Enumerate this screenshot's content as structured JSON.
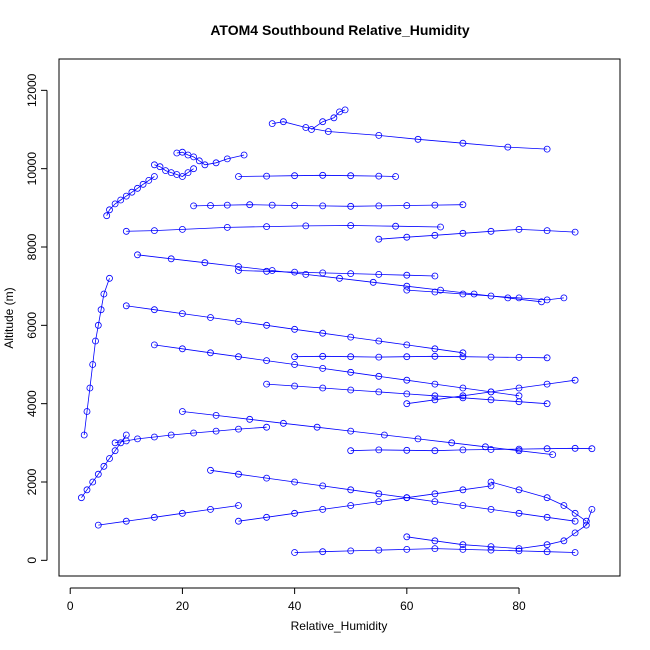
{
  "chart_data": {
    "type": "scatter",
    "title": "ATOM4 Southbound Relative_Humidity",
    "xlabel": "Relative_Humidity",
    "ylabel": "Altitude (m)",
    "xlim": [
      -2,
      98
    ],
    "ylim": [
      -400,
      12800
    ],
    "xticks": [
      0,
      20,
      40,
      60,
      80
    ],
    "yticks": [
      0,
      2000,
      4000,
      6000,
      8000,
      10000,
      12000
    ],
    "marker": "open-circle",
    "connected": true,
    "color": "#0000ff",
    "series": [
      {
        "x": [
          43,
          45,
          47,
          48,
          49
        ],
        "y": [
          11000,
          11200,
          11300,
          11450,
          11500
        ]
      },
      {
        "x": [
          36,
          38,
          42,
          46,
          55,
          62,
          70,
          78,
          85
        ],
        "y": [
          11150,
          11200,
          11050,
          10950,
          10850,
          10750,
          10650,
          10550,
          10500
        ]
      },
      {
        "x": [
          19,
          20,
          21,
          22,
          23,
          24,
          26,
          28,
          31
        ],
        "y": [
          10400,
          10420,
          10350,
          10300,
          10200,
          10100,
          10150,
          10250,
          10350
        ]
      },
      {
        "x": [
          15,
          16,
          17,
          18,
          19,
          20,
          21,
          22
        ],
        "y": [
          10100,
          10050,
          9950,
          9900,
          9850,
          9800,
          9900,
          10000
        ]
      },
      {
        "x": [
          6.5,
          7,
          8,
          9,
          10,
          11,
          12,
          13,
          14,
          15
        ],
        "y": [
          8800,
          8950,
          9100,
          9200,
          9300,
          9400,
          9500,
          9600,
          9700,
          9800
        ]
      },
      {
        "x": [
          22,
          25,
          28,
          32,
          36,
          40,
          45,
          50,
          55,
          60,
          65,
          70
        ],
        "y": [
          9050,
          9060,
          9070,
          9080,
          9070,
          9060,
          9050,
          9040,
          9050,
          9060,
          9070,
          9080
        ]
      },
      {
        "x": [
          30,
          35,
          40,
          45,
          50,
          55,
          58
        ],
        "y": [
          9800,
          9810,
          9820,
          9830,
          9820,
          9810,
          9800
        ]
      },
      {
        "x": [
          10,
          15,
          20,
          28,
          35,
          42,
          50,
          58,
          66
        ],
        "y": [
          8400,
          8420,
          8450,
          8500,
          8520,
          8540,
          8550,
          8530,
          8510
        ]
      },
      {
        "x": [
          30,
          35,
          40,
          45,
          50,
          55,
          60,
          65
        ],
        "y": [
          7400,
          7380,
          7360,
          7340,
          7320,
          7300,
          7280,
          7260
        ]
      },
      {
        "x": [
          40,
          45,
          50,
          55,
          60,
          65,
          70,
          75,
          80,
          85
        ],
        "y": [
          5200,
          5210,
          5200,
          5190,
          5200,
          5210,
          5200,
          5190,
          5180,
          5170
        ]
      },
      {
        "x": [
          2.5,
          3,
          3.5,
          4,
          4.5,
          5,
          5.5,
          6,
          7
        ],
        "y": [
          3200,
          3800,
          4400,
          5000,
          5600,
          6000,
          6400,
          6800,
          7200
        ]
      },
      {
        "x": [
          8,
          10,
          12,
          15,
          18,
          22,
          26,
          30,
          35
        ],
        "y": [
          3000,
          3050,
          3100,
          3150,
          3200,
          3250,
          3300,
          3350,
          3400
        ]
      },
      {
        "x": [
          2,
          3,
          4,
          5,
          6,
          7,
          8,
          9,
          10
        ],
        "y": [
          1600,
          1800,
          2000,
          2200,
          2400,
          2600,
          2800,
          3000,
          3200
        ]
      },
      {
        "x": [
          50,
          55,
          60,
          65,
          70,
          75,
          80,
          85,
          90,
          93
        ],
        "y": [
          2800,
          2820,
          2810,
          2800,
          2820,
          2830,
          2840,
          2850,
          2860,
          2850
        ]
      },
      {
        "x": [
          40,
          45,
          50,
          55,
          60,
          65,
          70,
          75,
          80,
          85,
          90
        ],
        "y": [
          200,
          220,
          240,
          260,
          280,
          300,
          280,
          260,
          240,
          220,
          200
        ]
      },
      {
        "x": [
          60,
          65,
          70,
          75,
          80,
          85,
          88,
          90,
          92,
          93
        ],
        "y": [
          600,
          500,
          400,
          350,
          300,
          400,
          500,
          700,
          900,
          1300
        ]
      },
      {
        "x": [
          75,
          80,
          85,
          88,
          90,
          92
        ],
        "y": [
          2000,
          1800,
          1600,
          1400,
          1200,
          1000
        ]
      },
      {
        "x": [
          30,
          35,
          40,
          45,
          50,
          55,
          60,
          65,
          70,
          75
        ],
        "y": [
          1000,
          1100,
          1200,
          1300,
          1400,
          1500,
          1600,
          1700,
          1800,
          1900
        ]
      },
      {
        "x": [
          5,
          10,
          15,
          20,
          25,
          30
        ],
        "y": [
          900,
          1000,
          1100,
          1200,
          1300,
          1400
        ]
      },
      {
        "x": [
          60,
          65,
          70,
          75,
          80,
          85,
          88
        ],
        "y": [
          6900,
          6850,
          6800,
          6750,
          6700,
          6650,
          6700
        ]
      },
      {
        "x": [
          55,
          60,
          65,
          70,
          75,
          80,
          85,
          90
        ],
        "y": [
          8200,
          8250,
          8300,
          8350,
          8400,
          8450,
          8420,
          8380
        ]
      },
      {
        "x": [
          60,
          65,
          70,
          75,
          80,
          85,
          90
        ],
        "y": [
          4000,
          4100,
          4200,
          4300,
          4400,
          4500,
          4600
        ]
      },
      {
        "x": [
          15,
          20,
          25,
          30,
          35,
          40,
          45,
          50,
          55,
          60,
          65,
          70,
          75,
          80
        ],
        "y": [
          5500,
          5400,
          5300,
          5200,
          5100,
          5000,
          4900,
          4800,
          4700,
          4600,
          4500,
          4400,
          4300,
          4200
        ]
      },
      {
        "x": [
          10,
          15,
          20,
          25,
          30,
          35,
          40,
          45,
          50,
          55,
          60,
          65,
          70
        ],
        "y": [
          6500,
          6400,
          6300,
          6200,
          6100,
          6000,
          5900,
          5800,
          5700,
          5600,
          5500,
          5400,
          5300
        ]
      },
      {
        "x": [
          12,
          18,
          24,
          30,
          36,
          42,
          48,
          54,
          60,
          66,
          72,
          78,
          84
        ],
        "y": [
          7800,
          7700,
          7600,
          7500,
          7400,
          7300,
          7200,
          7100,
          7000,
          6900,
          6800,
          6700,
          6600
        ]
      },
      {
        "x": [
          20,
          26,
          32,
          38,
          44,
          50,
          56,
          62,
          68,
          74,
          80,
          86
        ],
        "y": [
          3800,
          3700,
          3600,
          3500,
          3400,
          3300,
          3200,
          3100,
          3000,
          2900,
          2800,
          2700
        ]
      },
      {
        "x": [
          25,
          30,
          35,
          40,
          45,
          50,
          55,
          60,
          65,
          70,
          75,
          80,
          85,
          90
        ],
        "y": [
          2300,
          2200,
          2100,
          2000,
          1900,
          1800,
          1700,
          1600,
          1500,
          1400,
          1300,
          1200,
          1100,
          1000
        ]
      },
      {
        "x": [
          35,
          40,
          45,
          50,
          55,
          60,
          65,
          70,
          75,
          80,
          85
        ],
        "y": [
          4500,
          4450,
          4400,
          4350,
          4300,
          4250,
          4200,
          4150,
          4100,
          4050,
          4000
        ]
      }
    ]
  }
}
